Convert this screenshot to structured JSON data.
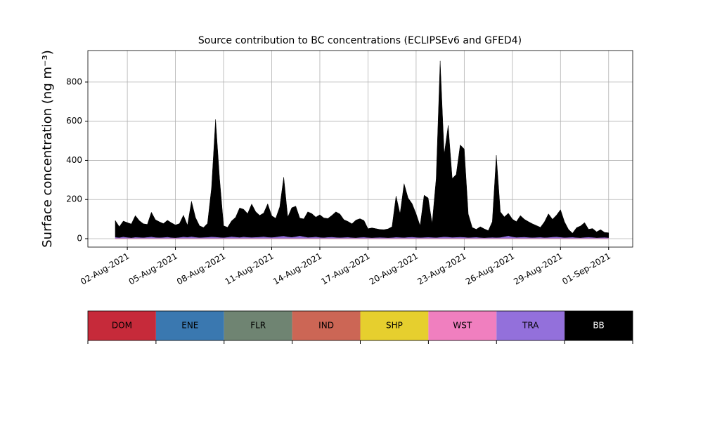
{
  "chart_data": {
    "type": "stacked_area",
    "title": "Source contribution to BC concentrations (ECLIPSEv6 and GFED4)",
    "ylabel": "Surface concentration (ng m⁻³)",
    "xlim": [
      "2021-07-30T13:00",
      "2021-09-02T12:00"
    ],
    "ylim": [
      -43,
      961
    ],
    "yticks": [
      0,
      200,
      400,
      600,
      800
    ],
    "xticks": [
      {
        "value": "2021-08-02T00:00",
        "label": "02-Aug-2021"
      },
      {
        "value": "2021-08-05T00:00",
        "label": "05-Aug-2021"
      },
      {
        "value": "2021-08-08T00:00",
        "label": "08-Aug-2021"
      },
      {
        "value": "2021-08-11T00:00",
        "label": "11-Aug-2021"
      },
      {
        "value": "2021-08-14T00:00",
        "label": "14-Aug-2021"
      },
      {
        "value": "2021-08-17T00:00",
        "label": "17-Aug-2021"
      },
      {
        "value": "2021-08-20T00:00",
        "label": "20-Aug-2021"
      },
      {
        "value": "2021-08-23T00:00",
        "label": "23-Aug-2021"
      },
      {
        "value": "2021-08-26T00:00",
        "label": "26-Aug-2021"
      },
      {
        "value": "2021-08-29T00:00",
        "label": "29-Aug-2021"
      },
      {
        "value": "2021-09-01T00:00",
        "label": "01-Sep-2021"
      }
    ],
    "grid": true,
    "x": [
      "2021-08-01T06:00",
      "2021-08-01T12:00",
      "2021-08-01T18:00",
      "2021-08-02T00:00",
      "2021-08-02T06:00",
      "2021-08-02T12:00",
      "2021-08-02T18:00",
      "2021-08-03T00:00",
      "2021-08-03T06:00",
      "2021-08-03T12:00",
      "2021-08-03T18:00",
      "2021-08-04T00:00",
      "2021-08-04T06:00",
      "2021-08-04T12:00",
      "2021-08-04T18:00",
      "2021-08-05T00:00",
      "2021-08-05T06:00",
      "2021-08-05T12:00",
      "2021-08-05T18:00",
      "2021-08-06T00:00",
      "2021-08-06T06:00",
      "2021-08-06T12:00",
      "2021-08-06T18:00",
      "2021-08-07T00:00",
      "2021-08-07T06:00",
      "2021-08-07T12:00",
      "2021-08-07T18:00",
      "2021-08-08T00:00",
      "2021-08-08T06:00",
      "2021-08-08T12:00",
      "2021-08-08T18:00",
      "2021-08-09T00:00",
      "2021-08-09T06:00",
      "2021-08-09T12:00",
      "2021-08-09T18:00",
      "2021-08-10T00:00",
      "2021-08-10T06:00",
      "2021-08-10T12:00",
      "2021-08-10T18:00",
      "2021-08-11T00:00",
      "2021-08-11T06:00",
      "2021-08-11T12:00",
      "2021-08-11T18:00",
      "2021-08-12T00:00",
      "2021-08-12T06:00",
      "2021-08-12T12:00",
      "2021-08-12T18:00",
      "2021-08-13T00:00",
      "2021-08-13T06:00",
      "2021-08-13T12:00",
      "2021-08-13T18:00",
      "2021-08-14T00:00",
      "2021-08-14T06:00",
      "2021-08-14T12:00",
      "2021-08-14T18:00",
      "2021-08-15T00:00",
      "2021-08-15T06:00",
      "2021-08-15T12:00",
      "2021-08-15T18:00",
      "2021-08-16T00:00",
      "2021-08-16T06:00",
      "2021-08-16T12:00",
      "2021-08-16T18:00",
      "2021-08-17T00:00",
      "2021-08-17T06:00",
      "2021-08-17T12:00",
      "2021-08-17T18:00",
      "2021-08-18T00:00",
      "2021-08-18T06:00",
      "2021-08-18T12:00",
      "2021-08-18T18:00",
      "2021-08-19T00:00",
      "2021-08-19T06:00",
      "2021-08-19T12:00",
      "2021-08-19T18:00",
      "2021-08-20T00:00",
      "2021-08-20T06:00",
      "2021-08-20T12:00",
      "2021-08-20T18:00",
      "2021-08-21T00:00",
      "2021-08-21T06:00",
      "2021-08-21T12:00",
      "2021-08-21T18:00",
      "2021-08-22T00:00",
      "2021-08-22T06:00",
      "2021-08-22T12:00",
      "2021-08-22T18:00",
      "2021-08-23T00:00",
      "2021-08-23T06:00",
      "2021-08-23T12:00",
      "2021-08-23T18:00",
      "2021-08-24T00:00",
      "2021-08-24T06:00",
      "2021-08-24T12:00",
      "2021-08-24T18:00",
      "2021-08-25T00:00",
      "2021-08-25T06:00",
      "2021-08-25T12:00",
      "2021-08-25T18:00",
      "2021-08-26T00:00",
      "2021-08-26T06:00",
      "2021-08-26T12:00",
      "2021-08-26T18:00",
      "2021-08-27T00:00",
      "2021-08-27T06:00",
      "2021-08-27T12:00",
      "2021-08-27T18:00",
      "2021-08-28T00:00",
      "2021-08-28T06:00",
      "2021-08-28T12:00",
      "2021-08-28T18:00",
      "2021-08-29T00:00",
      "2021-08-29T06:00",
      "2021-08-29T12:00",
      "2021-08-29T18:00",
      "2021-08-30T00:00",
      "2021-08-30T06:00",
      "2021-08-30T12:00",
      "2021-08-30T18:00",
      "2021-08-31T00:00",
      "2021-08-31T06:00",
      "2021-08-31T12:00",
      "2021-08-31T18:00",
      "2021-09-01T00:00"
    ],
    "series": [
      {
        "name": "DOM",
        "color": "#c62a3a",
        "values": [
          1,
          1,
          1,
          1,
          1,
          1,
          1,
          1,
          1,
          1,
          1,
          1,
          1,
          1,
          1,
          1,
          1,
          1,
          1,
          1,
          1,
          1,
          1,
          1,
          1,
          1,
          1,
          1,
          1,
          1,
          1,
          1,
          1,
          1,
          1,
          1,
          1,
          1,
          1,
          1,
          1,
          1,
          1,
          1,
          1,
          1,
          1,
          1,
          1,
          1,
          1,
          1,
          1,
          1,
          1,
          1,
          1,
          1,
          1,
          1,
          1,
          1,
          1,
          1,
          1,
          1,
          1,
          1,
          1,
          1,
          1,
          1,
          1,
          1,
          1,
          1,
          1,
          1,
          1,
          1,
          1,
          1,
          1,
          1,
          1,
          1,
          1,
          1,
          1,
          1,
          1,
          1,
          1,
          1,
          1,
          1,
          1,
          1,
          1,
          1,
          1,
          1,
          1,
          1,
          1,
          1,
          1,
          1,
          1,
          1,
          1,
          1,
          1,
          1,
          1,
          1,
          1,
          1,
          1,
          1,
          1,
          1,
          1,
          1
        ]
      },
      {
        "name": "ENE",
        "color": "#3a78b0",
        "values": [
          0,
          0,
          0,
          0,
          0,
          0,
          0,
          0,
          0,
          0,
          0,
          0,
          0,
          0,
          0,
          0,
          0,
          0,
          0,
          0,
          0,
          0,
          0,
          0,
          0,
          0,
          0,
          0,
          0,
          0,
          0,
          0,
          0,
          0,
          0,
          0,
          0,
          0,
          0,
          0,
          0,
          0,
          0,
          0,
          0,
          0,
          0,
          0,
          0,
          0,
          0,
          0,
          0,
          0,
          0,
          0,
          0,
          0,
          0,
          0,
          0,
          0,
          0,
          0,
          0,
          0,
          0,
          0,
          0,
          0,
          0,
          0,
          0,
          0,
          0,
          0,
          0,
          0,
          0,
          0,
          0,
          0,
          0,
          0,
          0,
          0,
          0,
          0,
          0,
          0,
          0,
          0,
          0,
          0,
          0,
          0,
          0,
          0,
          0,
          0,
          0,
          0,
          0,
          0,
          0,
          0,
          0,
          0,
          0,
          0,
          0,
          0,
          0,
          0,
          0,
          0,
          0,
          0,
          0,
          0,
          0,
          0,
          0,
          0
        ]
      },
      {
        "name": "FLR",
        "color": "#6f8472",
        "values": [
          0,
          0,
          0,
          0,
          0,
          0,
          0,
          0,
          0,
          0,
          0,
          0,
          0,
          0,
          0,
          0,
          0,
          0,
          0,
          0,
          0,
          0,
          0,
          0,
          0,
          0,
          0,
          0,
          0,
          0,
          0,
          0,
          0,
          0,
          0,
          0,
          0,
          0,
          0,
          0,
          0,
          0,
          0,
          0,
          0,
          0,
          0,
          0,
          0,
          0,
          0,
          0,
          0,
          0,
          0,
          0,
          0,
          0,
          0,
          0,
          0,
          0,
          0,
          0,
          0,
          0,
          0,
          0,
          0,
          0,
          0,
          0,
          0,
          0,
          0,
          0,
          0,
          0,
          0,
          0,
          0,
          0,
          0,
          0,
          0,
          0,
          0,
          0,
          0,
          0,
          0,
          0,
          0,
          0,
          0,
          0,
          0,
          0,
          0,
          0,
          0,
          0,
          0,
          0,
          0,
          0,
          0,
          0,
          0,
          0,
          0,
          0,
          0,
          0,
          0,
          0,
          0,
          0,
          0,
          0,
          0,
          0,
          0,
          0
        ]
      },
      {
        "name": "IND",
        "color": "#cc6655",
        "values": [
          1,
          1,
          1,
          1,
          1,
          1,
          1,
          1,
          1,
          1,
          1,
          1,
          1,
          1,
          1,
          1,
          1,
          1,
          1,
          1,
          1,
          1,
          1,
          1,
          1,
          1,
          1,
          1,
          1,
          1,
          1,
          1,
          1,
          1,
          1,
          1,
          1,
          1,
          1,
          1,
          1,
          1,
          1,
          1,
          1,
          1,
          1,
          1,
          1,
          1,
          1,
          1,
          1,
          1,
          1,
          1,
          1,
          1,
          1,
          1,
          1,
          1,
          1,
          1,
          1,
          1,
          1,
          1,
          1,
          1,
          1,
          1,
          1,
          1,
          1,
          1,
          1,
          1,
          1,
          1,
          1,
          1,
          1,
          1,
          1,
          1,
          1,
          1,
          1,
          1,
          1,
          1,
          1,
          1,
          1,
          1,
          1,
          1,
          1,
          1,
          1,
          1,
          1,
          1,
          1,
          1,
          1,
          1,
          1,
          1,
          1,
          1,
          1,
          1,
          1,
          1,
          1,
          1,
          1,
          1,
          1,
          1,
          1,
          1
        ]
      },
      {
        "name": "SHP",
        "color": "#e6cf2e",
        "values": [
          0,
          0,
          0,
          0,
          0,
          0,
          0,
          0,
          0,
          0,
          0,
          0,
          0,
          0,
          0,
          0,
          0,
          0,
          0,
          0,
          0,
          0,
          0,
          0,
          0,
          0,
          0,
          0,
          0,
          0,
          0,
          0,
          0,
          0,
          0,
          0,
          0,
          0,
          0,
          0,
          0,
          0,
          0,
          0,
          0,
          0,
          0,
          0,
          0,
          0,
          0,
          0,
          0,
          0,
          0,
          0,
          0,
          0,
          0,
          0,
          0,
          0,
          0,
          0,
          0,
          0,
          0,
          0,
          0,
          0,
          0,
          0,
          0,
          0,
          0,
          0,
          0,
          0,
          0,
          0,
          0,
          0,
          0,
          0,
          0,
          0,
          0,
          0,
          0,
          0,
          0,
          0,
          0,
          0,
          0,
          0,
          0,
          0,
          0,
          0,
          0,
          0,
          0,
          0,
          0,
          0,
          0,
          0,
          0,
          0,
          0,
          0,
          0,
          0,
          0,
          0,
          0,
          0,
          0,
          0,
          0,
          0,
          0,
          0
        ]
      },
      {
        "name": "WST",
        "color": "#f07fbf",
        "values": [
          0,
          0,
          0,
          0,
          0,
          0,
          0,
          0,
          0,
          0,
          0,
          0,
          0,
          0,
          0,
          0,
          0,
          0,
          0,
          0,
          0,
          0,
          0,
          0,
          0,
          0,
          0,
          0,
          0,
          0,
          0,
          0,
          0,
          0,
          0,
          0,
          0,
          0,
          0,
          0,
          0,
          0,
          0,
          0,
          0,
          0,
          0,
          0,
          0,
          0,
          0,
          0,
          0,
          0,
          0,
          0,
          0,
          0,
          0,
          0,
          0,
          0,
          0,
          0,
          0,
          0,
          0,
          0,
          0,
          0,
          0,
          0,
          0,
          0,
          0,
          0,
          0,
          0,
          0,
          0,
          0,
          0,
          0,
          0,
          0,
          0,
          0,
          0,
          0,
          0,
          0,
          0,
          0,
          0,
          0,
          0,
          0,
          0,
          0,
          0,
          0,
          0,
          0,
          0,
          0,
          0,
          0,
          0,
          0,
          0,
          0,
          0,
          0,
          0,
          0,
          0,
          0,
          0,
          0,
          0,
          0,
          0,
          0,
          0
        ]
      },
      {
        "name": "TRA",
        "color": "#9370db",
        "values": [
          6,
          4,
          8,
          5,
          3,
          6,
          5,
          4,
          6,
          8,
          5,
          4,
          5,
          7,
          4,
          3,
          5,
          8,
          6,
          9,
          6,
          4,
          5,
          6,
          8,
          7,
          5,
          4,
          6,
          9,
          7,
          5,
          8,
          6,
          5,
          6,
          7,
          9,
          6,
          5,
          7,
          10,
          12,
          8,
          6,
          9,
          13,
          9,
          5,
          6,
          8,
          5,
          4,
          6,
          7,
          5,
          4,
          5,
          6,
          4,
          3,
          5,
          6,
          4,
          3,
          4,
          5,
          4,
          3,
          4,
          6,
          5,
          4,
          6,
          7,
          5,
          4,
          5,
          6,
          5,
          4,
          6,
          8,
          7,
          5,
          6,
          7,
          6,
          4,
          5,
          6,
          4,
          3,
          4,
          5,
          4,
          5,
          9,
          13,
          8,
          5,
          6,
          7,
          5,
          4,
          5,
          6,
          4,
          5,
          7,
          8,
          6,
          4,
          5,
          6,
          4,
          3,
          5,
          6,
          5,
          3,
          4,
          5,
          3
        ]
      },
      {
        "name": "BB",
        "color": "#000000",
        "values": [
          85,
          55,
          80,
          75,
          70,
          110,
          85,
          70,
          65,
          125,
          90,
          80,
          70,
          85,
          75,
          65,
          70,
          110,
          60,
          180,
          100,
          60,
          50,
          70,
          250,
          600,
          300,
          60,
          50,
          80,
          100,
          150,
          140,
          120,
          170,
          130,
          110,
          120,
          170,
          110,
          95,
          150,
          300,
          100,
          150,
          155,
          90,
          90,
          130,
          120,
          100,
          115,
          100,
          95,
          110,
          130,
          120,
          90,
          80,
          70,
          90,
          95,
          85,
          45,
          50,
          45,
          40,
          40,
          45,
          55,
          210,
          120,
          275,
          200,
          170,
          120,
          60,
          215,
          200,
          70,
          300,
          900,
          420,
          570,
          300,
          320,
          470,
          450,
          120,
          50,
          40,
          55,
          45,
          35,
          80,
          420,
          130,
          100,
          115,
          90,
          80,
          110,
          90,
          80,
          70,
          60,
          50,
          80,
          120,
          90,
          110,
          140,
          80,
          40,
          20,
          50,
          60,
          75,
          40,
          45,
          30,
          40,
          25,
          25
        ]
      }
    ]
  }
}
